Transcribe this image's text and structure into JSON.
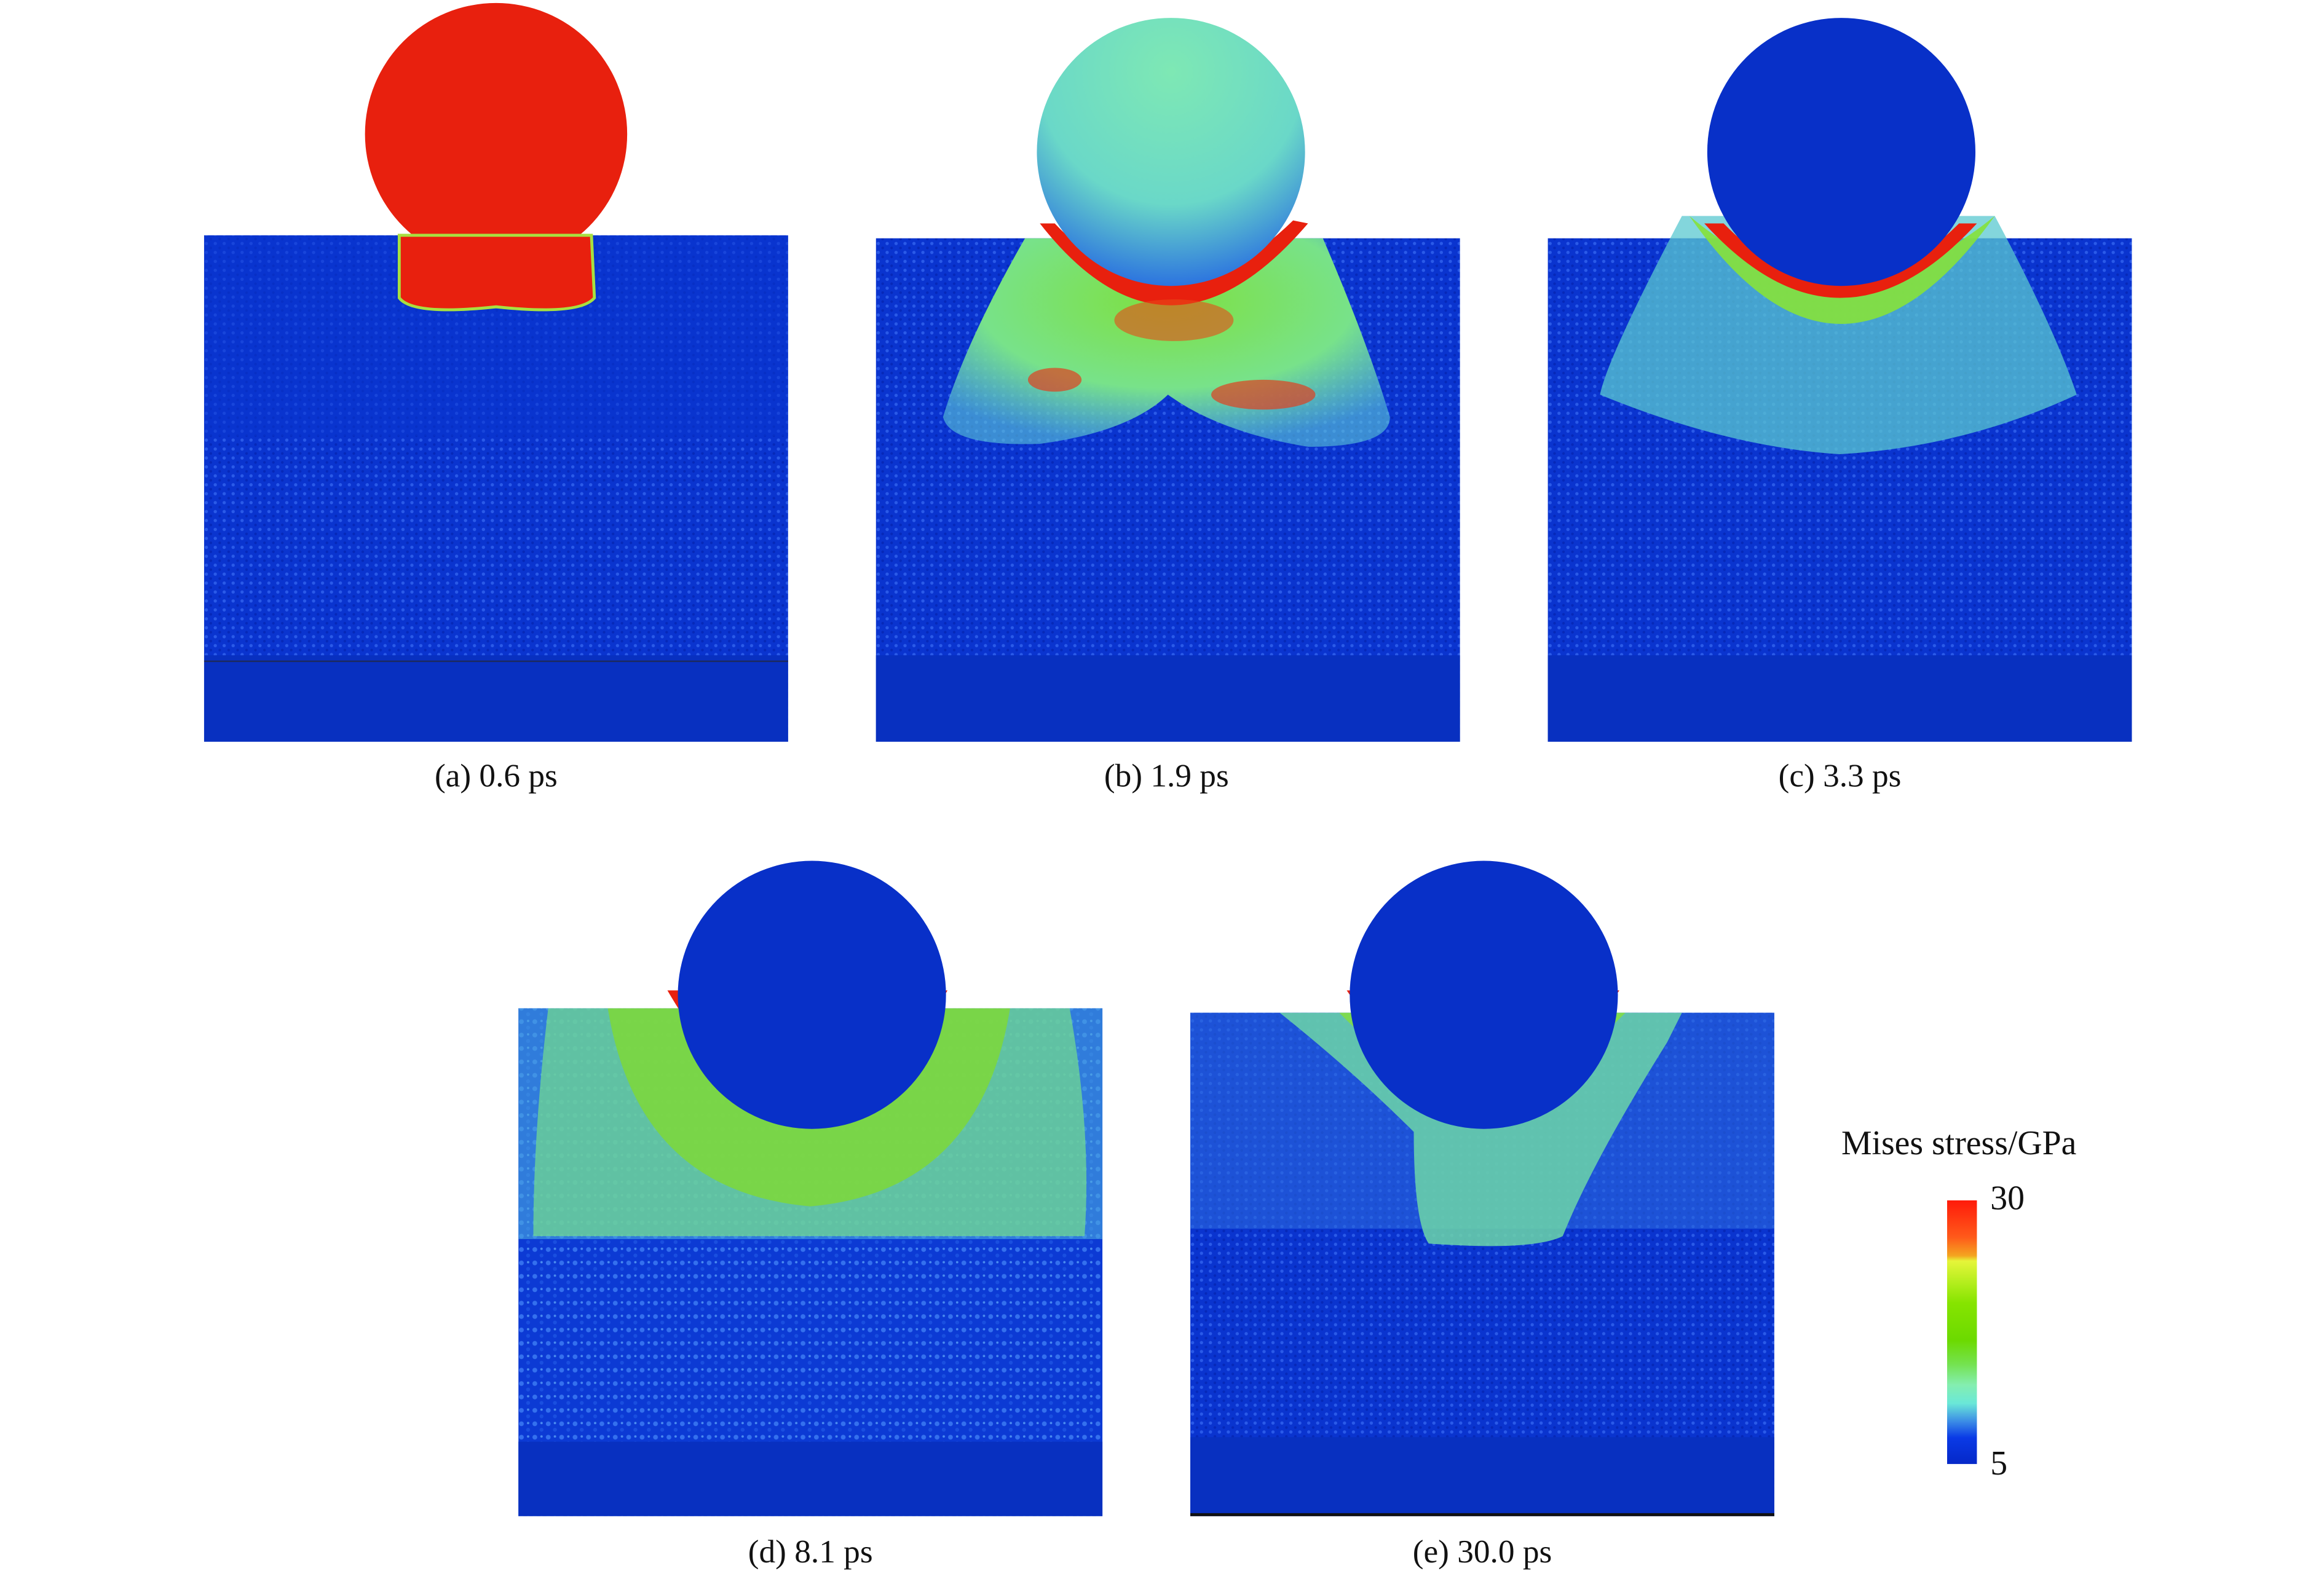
{
  "figure": {
    "panels": [
      {
        "id": "a",
        "caption": "(a) 0.6 ps"
      },
      {
        "id": "b",
        "caption": "(b) 1.9 ps"
      },
      {
        "id": "c",
        "caption": "(c) 3.3 ps"
      },
      {
        "id": "d",
        "caption": "(d) 8.1 ps"
      },
      {
        "id": "e",
        "caption": "(e) 30.0 ps"
      }
    ],
    "colorbar": {
      "title": "Mises stress/GPa",
      "max_label": "30",
      "min_label": "5",
      "min_value": 5,
      "max_value": 30
    },
    "colors": {
      "low": "#0528c8",
      "mid_low": "#84eeb0",
      "mid": "#6cda00",
      "mid_high": "#e6f53a",
      "high": "#ff1a0a"
    }
  }
}
